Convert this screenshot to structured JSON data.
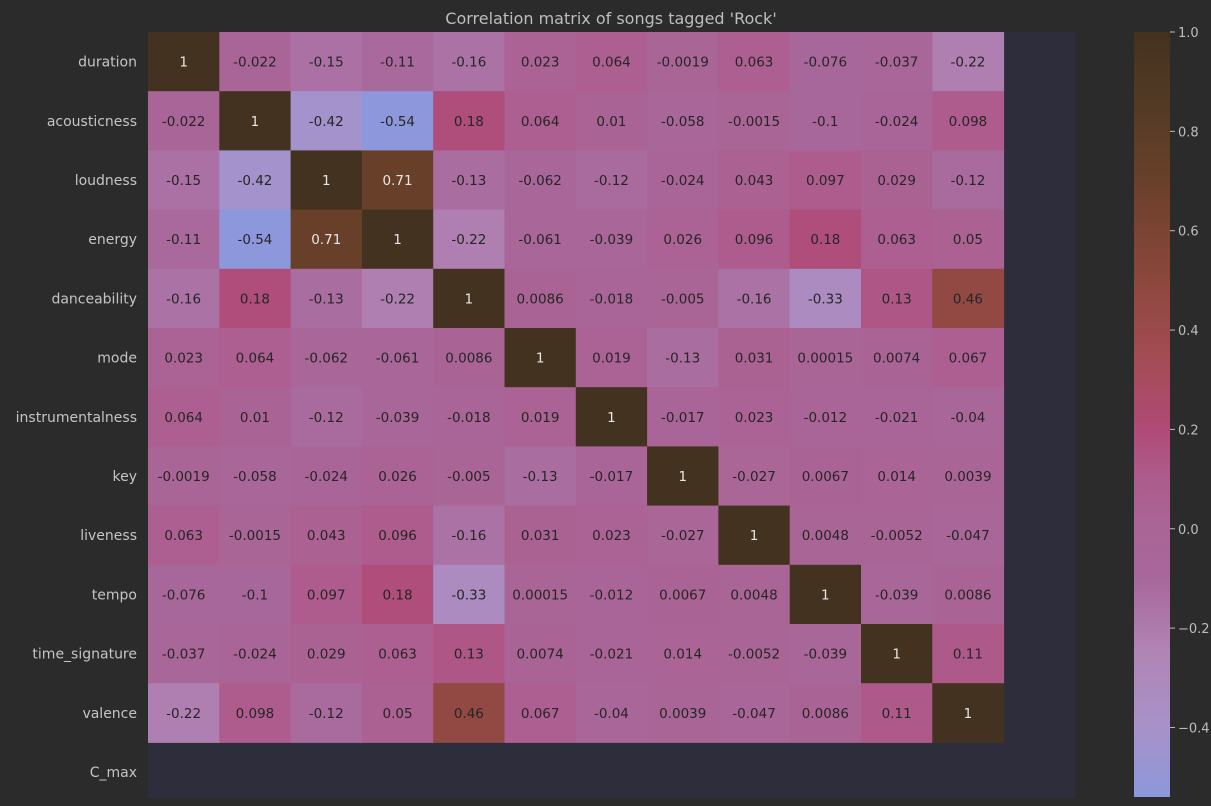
{
  "chart_data": {
    "type": "heatmap",
    "title": "Correlation matrix of songs tagged 'Rock'",
    "row_labels": [
      "duration",
      "acousticness",
      "loudness",
      "energy",
      "danceability",
      "mode",
      "instrumentalness",
      "key",
      "liveness",
      "tempo",
      "time_signature",
      "valence",
      "C_max"
    ],
    "columns_shown": 12,
    "values": [
      [
        "1",
        "-0.022",
        "-0.15",
        "-0.11",
        "-0.16",
        "0.023",
        "0.064",
        "-0.0019",
        "0.063",
        "-0.076",
        "-0.037",
        "-0.22"
      ],
      [
        "-0.022",
        "1",
        "-0.42",
        "-0.54",
        "0.18",
        "0.064",
        "0.01",
        "-0.058",
        "-0.0015",
        "-0.1",
        "-0.024",
        "0.098"
      ],
      [
        "-0.15",
        "-0.42",
        "1",
        "0.71",
        "-0.13",
        "-0.062",
        "-0.12",
        "-0.024",
        "0.043",
        "0.097",
        "0.029",
        "-0.12"
      ],
      [
        "-0.11",
        "-0.54",
        "0.71",
        "1",
        "-0.22",
        "-0.061",
        "-0.039",
        "0.026",
        "0.096",
        "0.18",
        "0.063",
        "0.05"
      ],
      [
        "-0.16",
        "0.18",
        "-0.13",
        "-0.22",
        "1",
        "0.0086",
        "-0.018",
        "-0.005",
        "-0.16",
        "-0.33",
        "0.13",
        "0.46"
      ],
      [
        "0.023",
        "0.064",
        "-0.062",
        "-0.061",
        "0.0086",
        "1",
        "0.019",
        "-0.13",
        "0.031",
        "0.00015",
        "0.0074",
        "0.067"
      ],
      [
        "0.064",
        "0.01",
        "-0.12",
        "-0.039",
        "-0.018",
        "0.019",
        "1",
        "-0.017",
        "0.023",
        "-0.012",
        "-0.021",
        "-0.04"
      ],
      [
        "-0.0019",
        "-0.058",
        "-0.024",
        "0.026",
        "-0.005",
        "-0.13",
        "-0.017",
        "1",
        "-0.027",
        "0.0067",
        "0.014",
        "0.0039"
      ],
      [
        "0.063",
        "-0.0015",
        "0.043",
        "0.096",
        "-0.16",
        "0.031",
        "0.023",
        "-0.027",
        "1",
        "0.0048",
        "-0.0052",
        "-0.047"
      ],
      [
        "-0.076",
        "-0.1",
        "0.097",
        "0.18",
        "-0.33",
        "0.00015",
        "-0.012",
        "0.0067",
        "0.0048",
        "1",
        "-0.039",
        "0.0086"
      ],
      [
        "-0.037",
        "-0.024",
        "0.029",
        "0.063",
        "0.13",
        "0.0074",
        "-0.021",
        "0.014",
        "-0.0052",
        "-0.039",
        "1",
        "0.11"
      ],
      [
        "-0.22",
        "0.098",
        "-0.12",
        "0.05",
        "0.46",
        "0.067",
        "-0.04",
        "0.0039",
        "-0.047",
        "0.0086",
        "0.11",
        "1"
      ],
      []
    ],
    "colorbar": {
      "ticks": [
        "1.0",
        "0.8",
        "0.6",
        "0.4",
        "0.2",
        "0.0",
        "−0.2",
        "−0.4"
      ],
      "tick_values": [
        1.0,
        0.8,
        0.6,
        0.4,
        0.2,
        0.0,
        -0.2,
        -0.4
      ],
      "range": [
        -0.54,
        1.0
      ]
    },
    "colors": {
      "background": "#2b2b2b",
      "empty_cell": "#2d2d3b",
      "colormap": [
        [
          -0.54,
          "#8c98db"
        ],
        [
          -0.4,
          "#a891c9"
        ],
        [
          -0.25,
          "#b085b5"
        ],
        [
          -0.1,
          "#a8679b"
        ],
        [
          0.0,
          "#a96596"
        ],
        [
          0.1,
          "#ad5c8d"
        ],
        [
          0.2,
          "#b04a77"
        ],
        [
          0.35,
          "#a24c53"
        ],
        [
          0.5,
          "#8c473d"
        ],
        [
          0.7,
          "#6a4029"
        ],
        [
          0.85,
          "#533a25"
        ],
        [
          1.0,
          "#43321f"
        ]
      ]
    }
  }
}
